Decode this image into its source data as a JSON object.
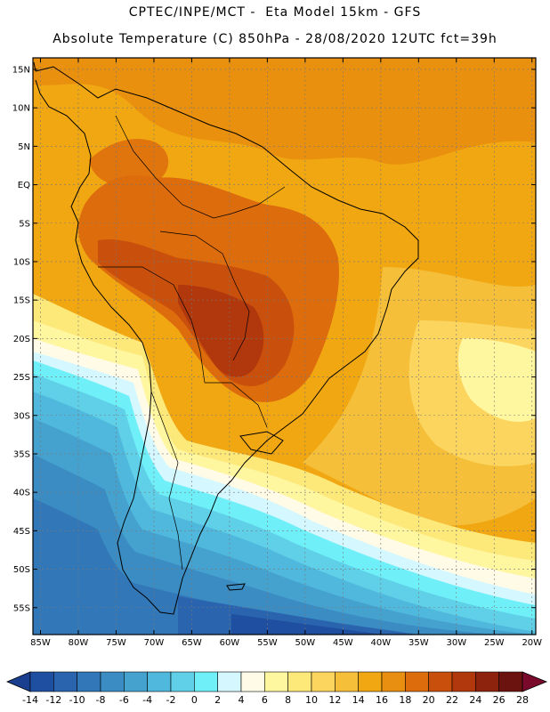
{
  "header": {
    "line1": "CPTEC/INPE/MCT -  Eta Model 15km - GFS",
    "line2": "Absolute Temperature (C) 850hPa - 28/08/2020 12UTC fct=39h"
  },
  "map": {
    "lat_labels": [
      "15N",
      "10N",
      "5N",
      "EQ",
      "5S",
      "10S",
      "15S",
      "20S",
      "25S",
      "30S",
      "35S",
      "40S",
      "45S",
      "50S",
      "55S"
    ],
    "lon_labels": [
      "85W",
      "80W",
      "75W",
      "70W",
      "65W",
      "60W",
      "55W",
      "50W",
      "45W",
      "40W",
      "35W",
      "30W",
      "25W",
      "20W"
    ],
    "lat_values": [
      15,
      10,
      5,
      0,
      -5,
      -10,
      -15,
      -20,
      -25,
      -30,
      -35,
      -40,
      -45,
      -50,
      -55
    ],
    "lon_values": [
      -85,
      -80,
      -75,
      -70,
      -65,
      -60,
      -55,
      -50,
      -45,
      -40,
      -35,
      -30,
      -25,
      -20
    ],
    "extent": {
      "lon_min": -86,
      "lon_max": -19.5,
      "lat_min": -58.5,
      "lat_max": 16.5
    }
  },
  "colorbar": {
    "ticks": [
      "-14",
      "-12",
      "-10",
      "-8",
      "-6",
      "-4",
      "-2",
      "0",
      "2",
      "4",
      "6",
      "8",
      "10",
      "12",
      "14",
      "16",
      "18",
      "20",
      "22",
      "24",
      "26",
      "28"
    ],
    "colors": [
      "#1a3f8f",
      "#1f4fa0",
      "#2a64ae",
      "#3278b8",
      "#3a8cc3",
      "#45a2cf",
      "#50b8dc",
      "#5fd0e8",
      "#6ff0f8",
      "#d5f7ff",
      "#fffbe6",
      "#fff6a0",
      "#fde87a",
      "#fbd55e",
      "#f5bf3a",
      "#f1a712",
      "#e88e10",
      "#dd6c0d",
      "#c9500c",
      "#b0380c",
      "#8e230d",
      "#6b140f",
      "#7a0a2c"
    ]
  }
}
